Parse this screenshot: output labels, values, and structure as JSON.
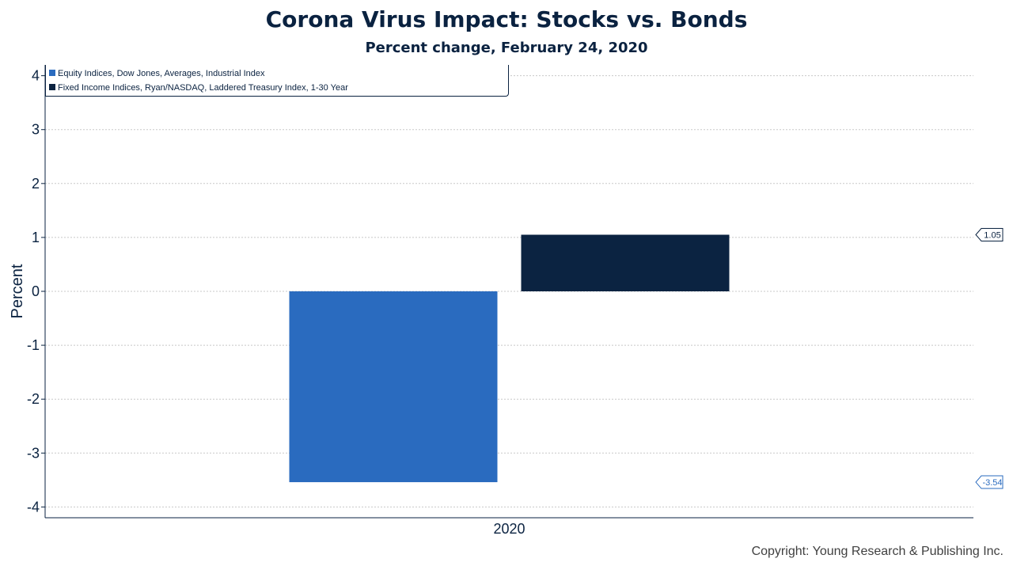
{
  "chart_data": {
    "type": "bar",
    "title": "Corona Virus Impact: Stocks vs. Bonds",
    "subtitle": "Percent change, February 24, 2020",
    "ylabel": "Percent",
    "xlabel": "",
    "categories": [
      "2020"
    ],
    "series": [
      {
        "name": "Equity Indices, Dow Jones, Averages, Industrial Index",
        "values": [
          -3.54
        ],
        "color": "#2a6bbf",
        "label": "-3.54"
      },
      {
        "name": "Fixed Income Indices, Ryan/NASDAQ, Laddered Treasury Index, 1-30 Year",
        "values": [
          1.05
        ],
        "color": "#0b2341",
        "label": "1.05"
      }
    ],
    "ylim": [
      -4.2,
      4.2
    ],
    "yticks": [
      4,
      3,
      2,
      1,
      0,
      -1,
      -2,
      -3,
      -4
    ],
    "ytick_labels": [
      "4",
      "3",
      "2",
      "1",
      "0",
      "-1",
      "-2",
      "-3",
      "-4"
    ],
    "grid": true,
    "legend_position": "top-left"
  },
  "footer": {
    "copyright": "Copyright: Young Research & Publishing Inc."
  }
}
